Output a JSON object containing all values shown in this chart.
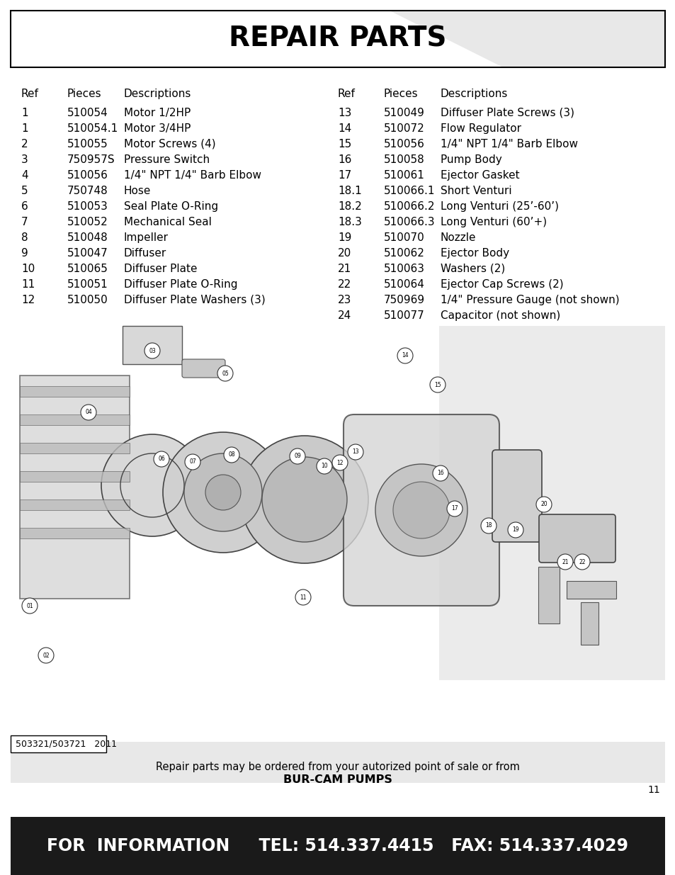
{
  "title": "REPAIR PARTS",
  "title_fontsize": 28,
  "bg_color": "#ffffff",
  "gray_bg": "#e8e8e8",
  "dark_bg": "#1a1a1a",
  "header_color": "#000000",
  "left_table_headers": [
    "Ref",
    "Pieces",
    "Descriptions"
  ],
  "right_table_headers": [
    "Ref",
    "Pieces",
    "Descriptions"
  ],
  "left_rows": [
    [
      "1",
      "510054",
      "Motor 1/2HP"
    ],
    [
      "1",
      "510054.1",
      "Motor 3/4HP"
    ],
    [
      "2",
      "510055",
      "Motor Screws (4)"
    ],
    [
      "3",
      "750957S",
      "Pressure Switch"
    ],
    [
      "4",
      "510056",
      "1/4\" NPT 1/4\" Barb Elbow"
    ],
    [
      "5",
      "750748",
      "Hose"
    ],
    [
      "6",
      "510053",
      "Seal Plate O-Ring"
    ],
    [
      "7",
      "510052",
      "Mechanical Seal"
    ],
    [
      "8",
      "510048",
      "Impeller"
    ],
    [
      "9",
      "510047",
      "Diffuser"
    ],
    [
      "10",
      "510065",
      "Diffuser Plate"
    ],
    [
      "11",
      "510051",
      "Diffuser Plate O-Ring"
    ],
    [
      "12",
      "510050",
      "Diffuser Plate Washers (3)"
    ]
  ],
  "right_rows": [
    [
      "13",
      "510049",
      "Diffuser Plate Screws (3)"
    ],
    [
      "14",
      "510072",
      "Flow Regulator"
    ],
    [
      "15",
      "510056",
      "1/4\" NPT 1/4\" Barb Elbow"
    ],
    [
      "16",
      "510058",
      "Pump Body"
    ],
    [
      "17",
      "510061",
      "Ejector Gasket"
    ],
    [
      "18.1",
      "510066.1",
      "Short Venturi"
    ],
    [
      "18.2",
      "510066.2",
      "Long Venturi (25’-60’)"
    ],
    [
      "18.3",
      "510066.3",
      "Long Venturi (60’+)"
    ],
    [
      "19",
      "510070",
      "Nozzle"
    ],
    [
      "20",
      "510062",
      "Ejector Body"
    ],
    [
      "21",
      "510063",
      "Washers (2)"
    ],
    [
      "22",
      "510064",
      "Ejector Cap Screws (2)"
    ],
    [
      "23",
      "750969",
      "1/4\" Pressure Gauge (not shown)"
    ],
    [
      "24",
      "510077",
      "Capacitor (not shown)"
    ]
  ],
  "footer_text1": "Repair parts may be ordered from your autorized point of sale or from",
  "footer_text2": "BUR-CAM PUMPS",
  "bottom_bar_text": "FOR  INFORMATION     TEL: 514.337.4415   FAX: 514.337.4029",
  "model_text": "503321/503721   2011",
  "page_number": "11"
}
